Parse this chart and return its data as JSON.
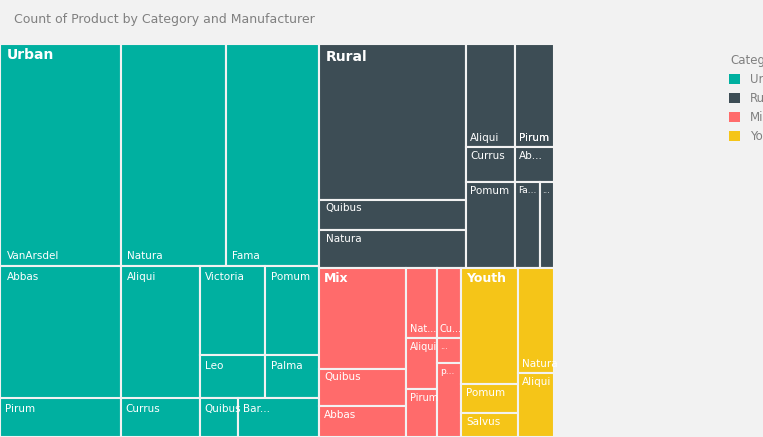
{
  "title": "Count of Product by Category and Manufacturer",
  "title_color": "#808080",
  "background_color": "#f2f2f2",
  "legend_categories": [
    "Urban",
    "Rural",
    "Mix",
    "Youth"
  ],
  "legend_colors": [
    "#00b0a0",
    "#3d4d55",
    "#ff6b6b",
    "#f5c518"
  ],
  "urban_color": "#00b0a0",
  "rural_color": "#3d4d55",
  "mix_color": "#ff6b6b",
  "youth_color": "#f5c518",
  "border_color": "#f2f2f2"
}
